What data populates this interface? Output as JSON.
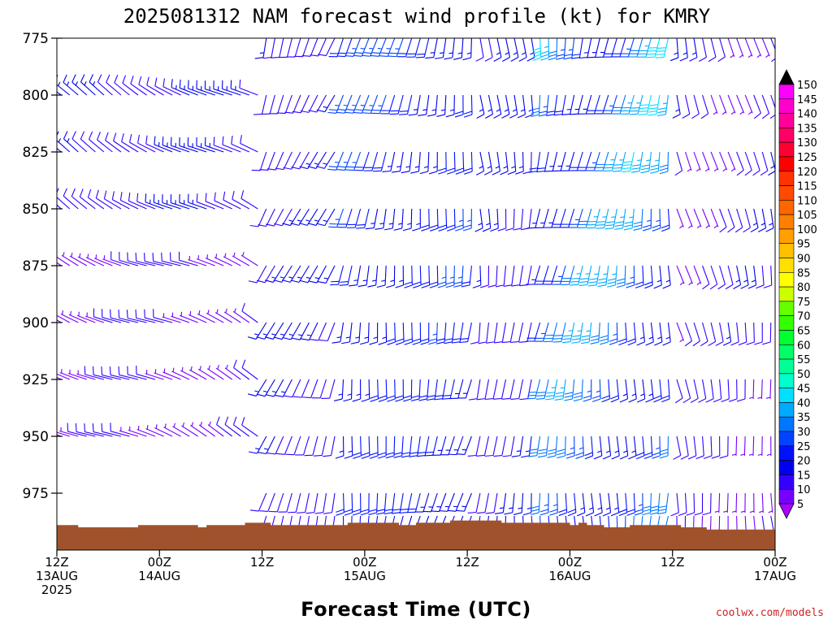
{
  "chart_data": {
    "type": "wind-barb time-height",
    "title": "2025081312 NAM forecast wind profile (kt) for KMRY",
    "xlabel": "Forecast Time (UTC)",
    "ylabel": "",
    "credit": "coolwx.com/models",
    "y_axis": {
      "range": [
        775,
        1000
      ],
      "ticks": [
        775,
        800,
        825,
        850,
        875,
        900,
        925,
        950,
        975
      ],
      "inverted": true
    },
    "x_axis": {
      "range_hours": [
        0,
        84
      ],
      "ticks": [
        {
          "h": 0,
          "line1": "12Z",
          "line2": "13AUG",
          "line3": "2025"
        },
        {
          "h": 12,
          "line1": "00Z",
          "line2": "14AUG",
          "line3": ""
        },
        {
          "h": 24,
          "line1": "12Z",
          "line2": "",
          "line3": ""
        },
        {
          "h": 36,
          "line1": "00Z",
          "line2": "15AUG",
          "line3": ""
        },
        {
          "h": 48,
          "line1": "12Z",
          "line2": "",
          "line3": ""
        },
        {
          "h": 60,
          "line1": "00Z",
          "line2": "16AUG",
          "line3": ""
        },
        {
          "h": 72,
          "line1": "12Z",
          "line2": "",
          "line3": ""
        },
        {
          "h": 84,
          "line1": "00Z",
          "line2": "17AUG",
          "line3": ""
        }
      ]
    },
    "levels_hpa": [
      775,
      800,
      825,
      850,
      875,
      900,
      925,
      950,
      975,
      985
    ],
    "time_step_hours": 1,
    "terrain_surface_pressure": [
      {
        "h": 0,
        "p": 989
      },
      {
        "h": 2.5,
        "p": 990
      },
      {
        "h": 7,
        "p": 990
      },
      {
        "h": 9.5,
        "p": 989
      },
      {
        "h": 16,
        "p": 989
      },
      {
        "h": 16.5,
        "p": 990
      },
      {
        "h": 17.5,
        "p": 989
      },
      {
        "h": 21.5,
        "p": 989
      },
      {
        "h": 22,
        "p": 988
      },
      {
        "h": 24.5,
        "p": 988
      },
      {
        "h": 25,
        "p": 989
      },
      {
        "h": 33.5,
        "p": 989
      },
      {
        "h": 34,
        "p": 988
      },
      {
        "h": 39.5,
        "p": 988
      },
      {
        "h": 40,
        "p": 989
      },
      {
        "h": 41.5,
        "p": 989
      },
      {
        "h": 42,
        "p": 988
      },
      {
        "h": 45.5,
        "p": 988
      },
      {
        "h": 46,
        "p": 987
      },
      {
        "h": 51.5,
        "p": 987
      },
      {
        "h": 52,
        "p": 988
      },
      {
        "h": 59.5,
        "p": 988
      },
      {
        "h": 60,
        "p": 989
      },
      {
        "h": 61,
        "p": 988
      },
      {
        "h": 62,
        "p": 989
      },
      {
        "h": 63.5,
        "p": 989
      },
      {
        "h": 64,
        "p": 990
      },
      {
        "h": 66.5,
        "p": 990
      },
      {
        "h": 67,
        "p": 989
      },
      {
        "h": 72.5,
        "p": 989
      },
      {
        "h": 73,
        "p": 990
      },
      {
        "h": 75.5,
        "p": 990
      },
      {
        "h": 76,
        "p": 991
      },
      {
        "h": 84,
        "p": 991
      }
    ],
    "wind_regimes": [
      {
        "hours": [
          0,
          24
        ],
        "levels": [
          775,
          875
        ],
        "dir_deg": 300,
        "speed_kt": [
          10,
          15
        ]
      },
      {
        "hours": [
          0,
          24
        ],
        "levels": [
          875,
          975
        ],
        "dir_deg": 295,
        "speed_kt": [
          5,
          10
        ]
      },
      {
        "hours": [
          24,
          33
        ],
        "levels": [
          775,
          985
        ],
        "dir_deg": 200,
        "speed_kt": [
          10,
          15
        ]
      },
      {
        "hours": [
          33,
          49
        ],
        "levels": [
          775,
          985
        ],
        "dir_deg": 190,
        "speed_kt": [
          15,
          25
        ]
      },
      {
        "hours": [
          49,
          56
        ],
        "levels": [
          775,
          985
        ],
        "dir_deg": 180,
        "speed_kt": [
          10,
          15
        ]
      },
      {
        "hours": [
          56,
          72
        ],
        "levels": [
          775,
          985
        ],
        "dir_deg": 185,
        "speed_kt": [
          15,
          40
        ]
      },
      {
        "hours": [
          72,
          84
        ],
        "levels": [
          775,
          985
        ],
        "dir_deg": 170,
        "speed_kt": [
          5,
          15
        ]
      }
    ],
    "colorbar": {
      "labels": [
        150,
        145,
        140,
        135,
        130,
        125,
        120,
        115,
        110,
        105,
        100,
        95,
        90,
        85,
        80,
        75,
        70,
        65,
        60,
        55,
        50,
        45,
        40,
        35,
        30,
        25,
        20,
        15,
        10,
        5
      ],
      "colors": [
        "#000000",
        "#ff00ff",
        "#ff00cc",
        "#ff0099",
        "#ff0066",
        "#ff0033",
        "#ff0000",
        "#ff3300",
        "#ff4a00",
        "#ff6600",
        "#ff8000",
        "#ffa000",
        "#ffc000",
        "#ffe000",
        "#ffff00",
        "#ccff00",
        "#66ff00",
        "#33ff00",
        "#00ff33",
        "#00ff66",
        "#00ff99",
        "#00ffcc",
        "#00e0ff",
        "#00aaff",
        "#0077ff",
        "#0044ff",
        "#0011ff",
        "#0000ee",
        "#3300ff",
        "#7700ff",
        "#aa00ff"
      ]
    },
    "terrain_color": "#a0522d"
  }
}
